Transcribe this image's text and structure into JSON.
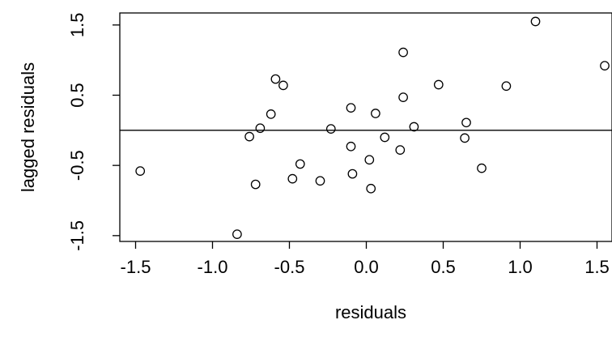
{
  "chart_data": {
    "type": "scatter",
    "title": "",
    "xlabel": "residuals",
    "ylabel": "lagged residuals",
    "xlim": [
      -1.6,
      1.6
    ],
    "ylim": [
      -1.6,
      1.7
    ],
    "xticks": [
      -1.5,
      -1.0,
      -0.5,
      0.0,
      0.5,
      1.0,
      1.5
    ],
    "xtick_labels": [
      "-1.5",
      "-1.0",
      "-0.5",
      "0.0",
      "0.5",
      "1.0",
      "1.5"
    ],
    "yticks": [
      -1.5,
      -0.5,
      0.5,
      1.5
    ],
    "ytick_labels": [
      "-1.5",
      "-0.5",
      "0.5",
      "1.5"
    ],
    "hline": 0,
    "grid": false,
    "marker": "open-circle",
    "points": [
      {
        "x": -1.47,
        "y": -0.58
      },
      {
        "x": -0.84,
        "y": -1.48
      },
      {
        "x": -0.76,
        "y": -0.09
      },
      {
        "x": -0.72,
        "y": -0.77
      },
      {
        "x": -0.69,
        "y": 0.03
      },
      {
        "x": -0.62,
        "y": 0.23
      },
      {
        "x": -0.59,
        "y": 0.73
      },
      {
        "x": -0.54,
        "y": 0.64
      },
      {
        "x": -0.48,
        "y": -0.69
      },
      {
        "x": -0.43,
        "y": -0.48
      },
      {
        "x": -0.3,
        "y": -0.72
      },
      {
        "x": -0.23,
        "y": 0.02
      },
      {
        "x": -0.1,
        "y": 0.32
      },
      {
        "x": -0.1,
        "y": -0.23
      },
      {
        "x": -0.09,
        "y": -0.62
      },
      {
        "x": 0.02,
        "y": -0.42
      },
      {
        "x": 0.03,
        "y": -0.83
      },
      {
        "x": 0.06,
        "y": 0.24
      },
      {
        "x": 0.12,
        "y": -0.1
      },
      {
        "x": 0.22,
        "y": -0.28
      },
      {
        "x": 0.24,
        "y": 1.11
      },
      {
        "x": 0.24,
        "y": 0.47
      },
      {
        "x": 0.31,
        "y": 0.05
      },
      {
        "x": 0.47,
        "y": 0.65
      },
      {
        "x": 0.64,
        "y": -0.11
      },
      {
        "x": 0.65,
        "y": 0.11
      },
      {
        "x": 0.75,
        "y": -0.54
      },
      {
        "x": 0.91,
        "y": 0.63
      },
      {
        "x": 1.1,
        "y": 1.55
      },
      {
        "x": 1.55,
        "y": 0.92
      }
    ]
  }
}
